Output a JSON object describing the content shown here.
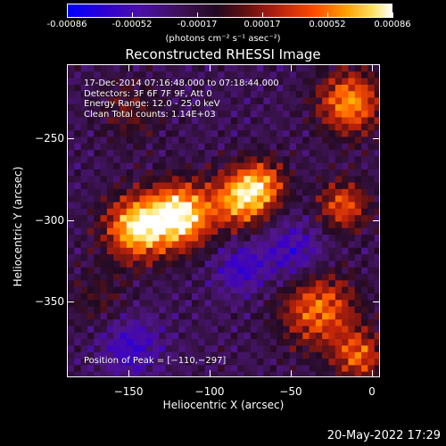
{
  "colorbar": {
    "ticks": [
      "-0.00086",
      "-0.00052",
      "-0.00017",
      "0.00017",
      "0.00052",
      "0.00086"
    ],
    "unit": "(photons cm⁻² s⁻¹ asec⁻²)"
  },
  "chart_data": {
    "type": "heatmap",
    "title": "Reconstructed RHESSI Image",
    "xlabel": "Heliocentric X (arcsec)",
    "ylabel": "Heliocentric Y (arcsec)",
    "xticks": [
      "−150",
      "−100",
      "−50",
      "0"
    ],
    "yticks": [
      "−250",
      "−300",
      "−350"
    ],
    "xlim": [
      -188,
      5
    ],
    "ylim": [
      -396,
      -205
    ],
    "peak_position": [
      -110,
      -297
    ],
    "color_range": [
      -0.00086,
      0.00086
    ],
    "annotations": [
      "17-Dec-2014 07:16:48.000 to 07:18:44.000",
      "Detectors: 3F 6F 7F 9F, Att 0",
      "Energy Range: 12.0 - 25.0 keV",
      "Clean     Total counts: 1.14E+03"
    ],
    "peak_label": "Position of Peak = [−110,−297]"
  },
  "footer": {
    "timestamp": "20-May-2022 17:29"
  },
  "colors": {
    "background": "#000000",
    "foreground": "#ffffff"
  }
}
